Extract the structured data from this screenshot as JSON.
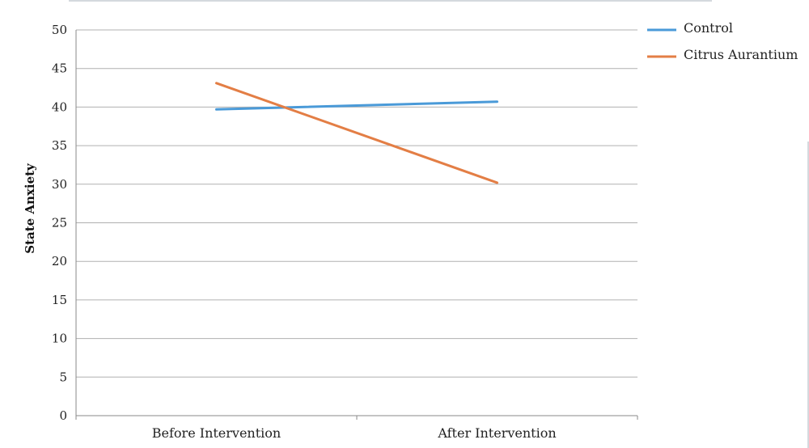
{
  "chart_data": {
    "type": "line",
    "categories": [
      "Before Intervention",
      "After Intervention"
    ],
    "series": [
      {
        "name": "Control",
        "values": [
          39.7,
          40.7
        ],
        "color": "#4a9ad8"
      },
      {
        "name": "Citrus Aurantium",
        "values": [
          43.1,
          30.2
        ],
        "color": "#e37e45"
      }
    ],
    "ylabel": "State Anxiety",
    "ylim": [
      0,
      50
    ],
    "yticks": [
      0,
      5,
      10,
      15,
      20,
      25,
      30,
      35,
      40,
      45,
      50
    ],
    "grid": true,
    "legend": "top-right"
  }
}
